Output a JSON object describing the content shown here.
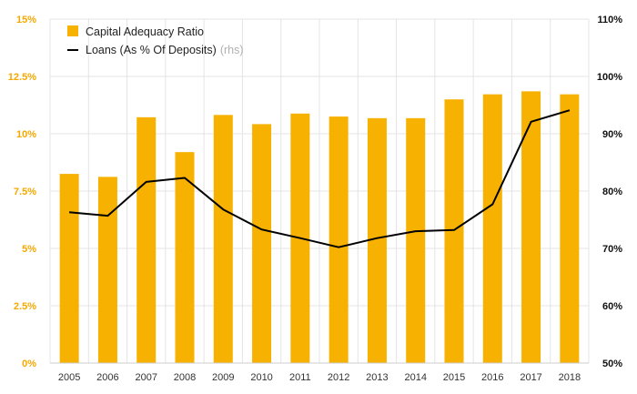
{
  "chart_data": {
    "type": "bar+line",
    "categories": [
      "2005",
      "2006",
      "2007",
      "2008",
      "2009",
      "2010",
      "2011",
      "2012",
      "2013",
      "2014",
      "2015",
      "2016",
      "2017",
      "2018"
    ],
    "series": [
      {
        "name": "Capital Adequacy Ratio",
        "type": "bar",
        "axis": "left",
        "color": "#f7b100",
        "values": [
          8.25,
          8.12,
          10.72,
          9.2,
          10.82,
          10.42,
          10.88,
          10.75,
          10.68,
          10.68,
          11.5,
          11.72,
          11.85,
          11.72
        ]
      },
      {
        "name": "Loans (As % Of Deposits)",
        "name_suffix": "(rhs)",
        "type": "line",
        "axis": "right",
        "color": "#000000",
        "values": [
          76.3,
          75.7,
          81.6,
          82.3,
          76.8,
          73.3,
          71.8,
          70.2,
          71.8,
          73.0,
          73.2,
          77.7,
          92.1,
          94.1
        ]
      }
    ],
    "y_left": {
      "min": 0,
      "max": 15,
      "ticks": [
        0,
        2.5,
        5,
        7.5,
        10,
        12.5,
        15
      ],
      "tick_labels": [
        "0%",
        "2.5%",
        "5%",
        "7.5%",
        "10%",
        "12.5%",
        "15%"
      ],
      "color": "#f5a800"
    },
    "y_right": {
      "min": 50,
      "max": 110,
      "ticks": [
        50,
        60,
        70,
        80,
        90,
        100,
        110
      ],
      "tick_labels": [
        "50%",
        "60%",
        "70%",
        "80%",
        "90%",
        "100%",
        "110%"
      ],
      "color": "#111111"
    },
    "legend": {
      "position": "top-left",
      "items": [
        {
          "label": "Capital Adequacy Ratio",
          "suffix": "",
          "marker": "square",
          "color": "#f7b100"
        },
        {
          "label": "Loans (As % Of Deposits)",
          "suffix": "(rhs)",
          "marker": "line",
          "color": "#000000"
        }
      ]
    },
    "grid": true,
    "gridline_color": "#e4e4e4"
  }
}
